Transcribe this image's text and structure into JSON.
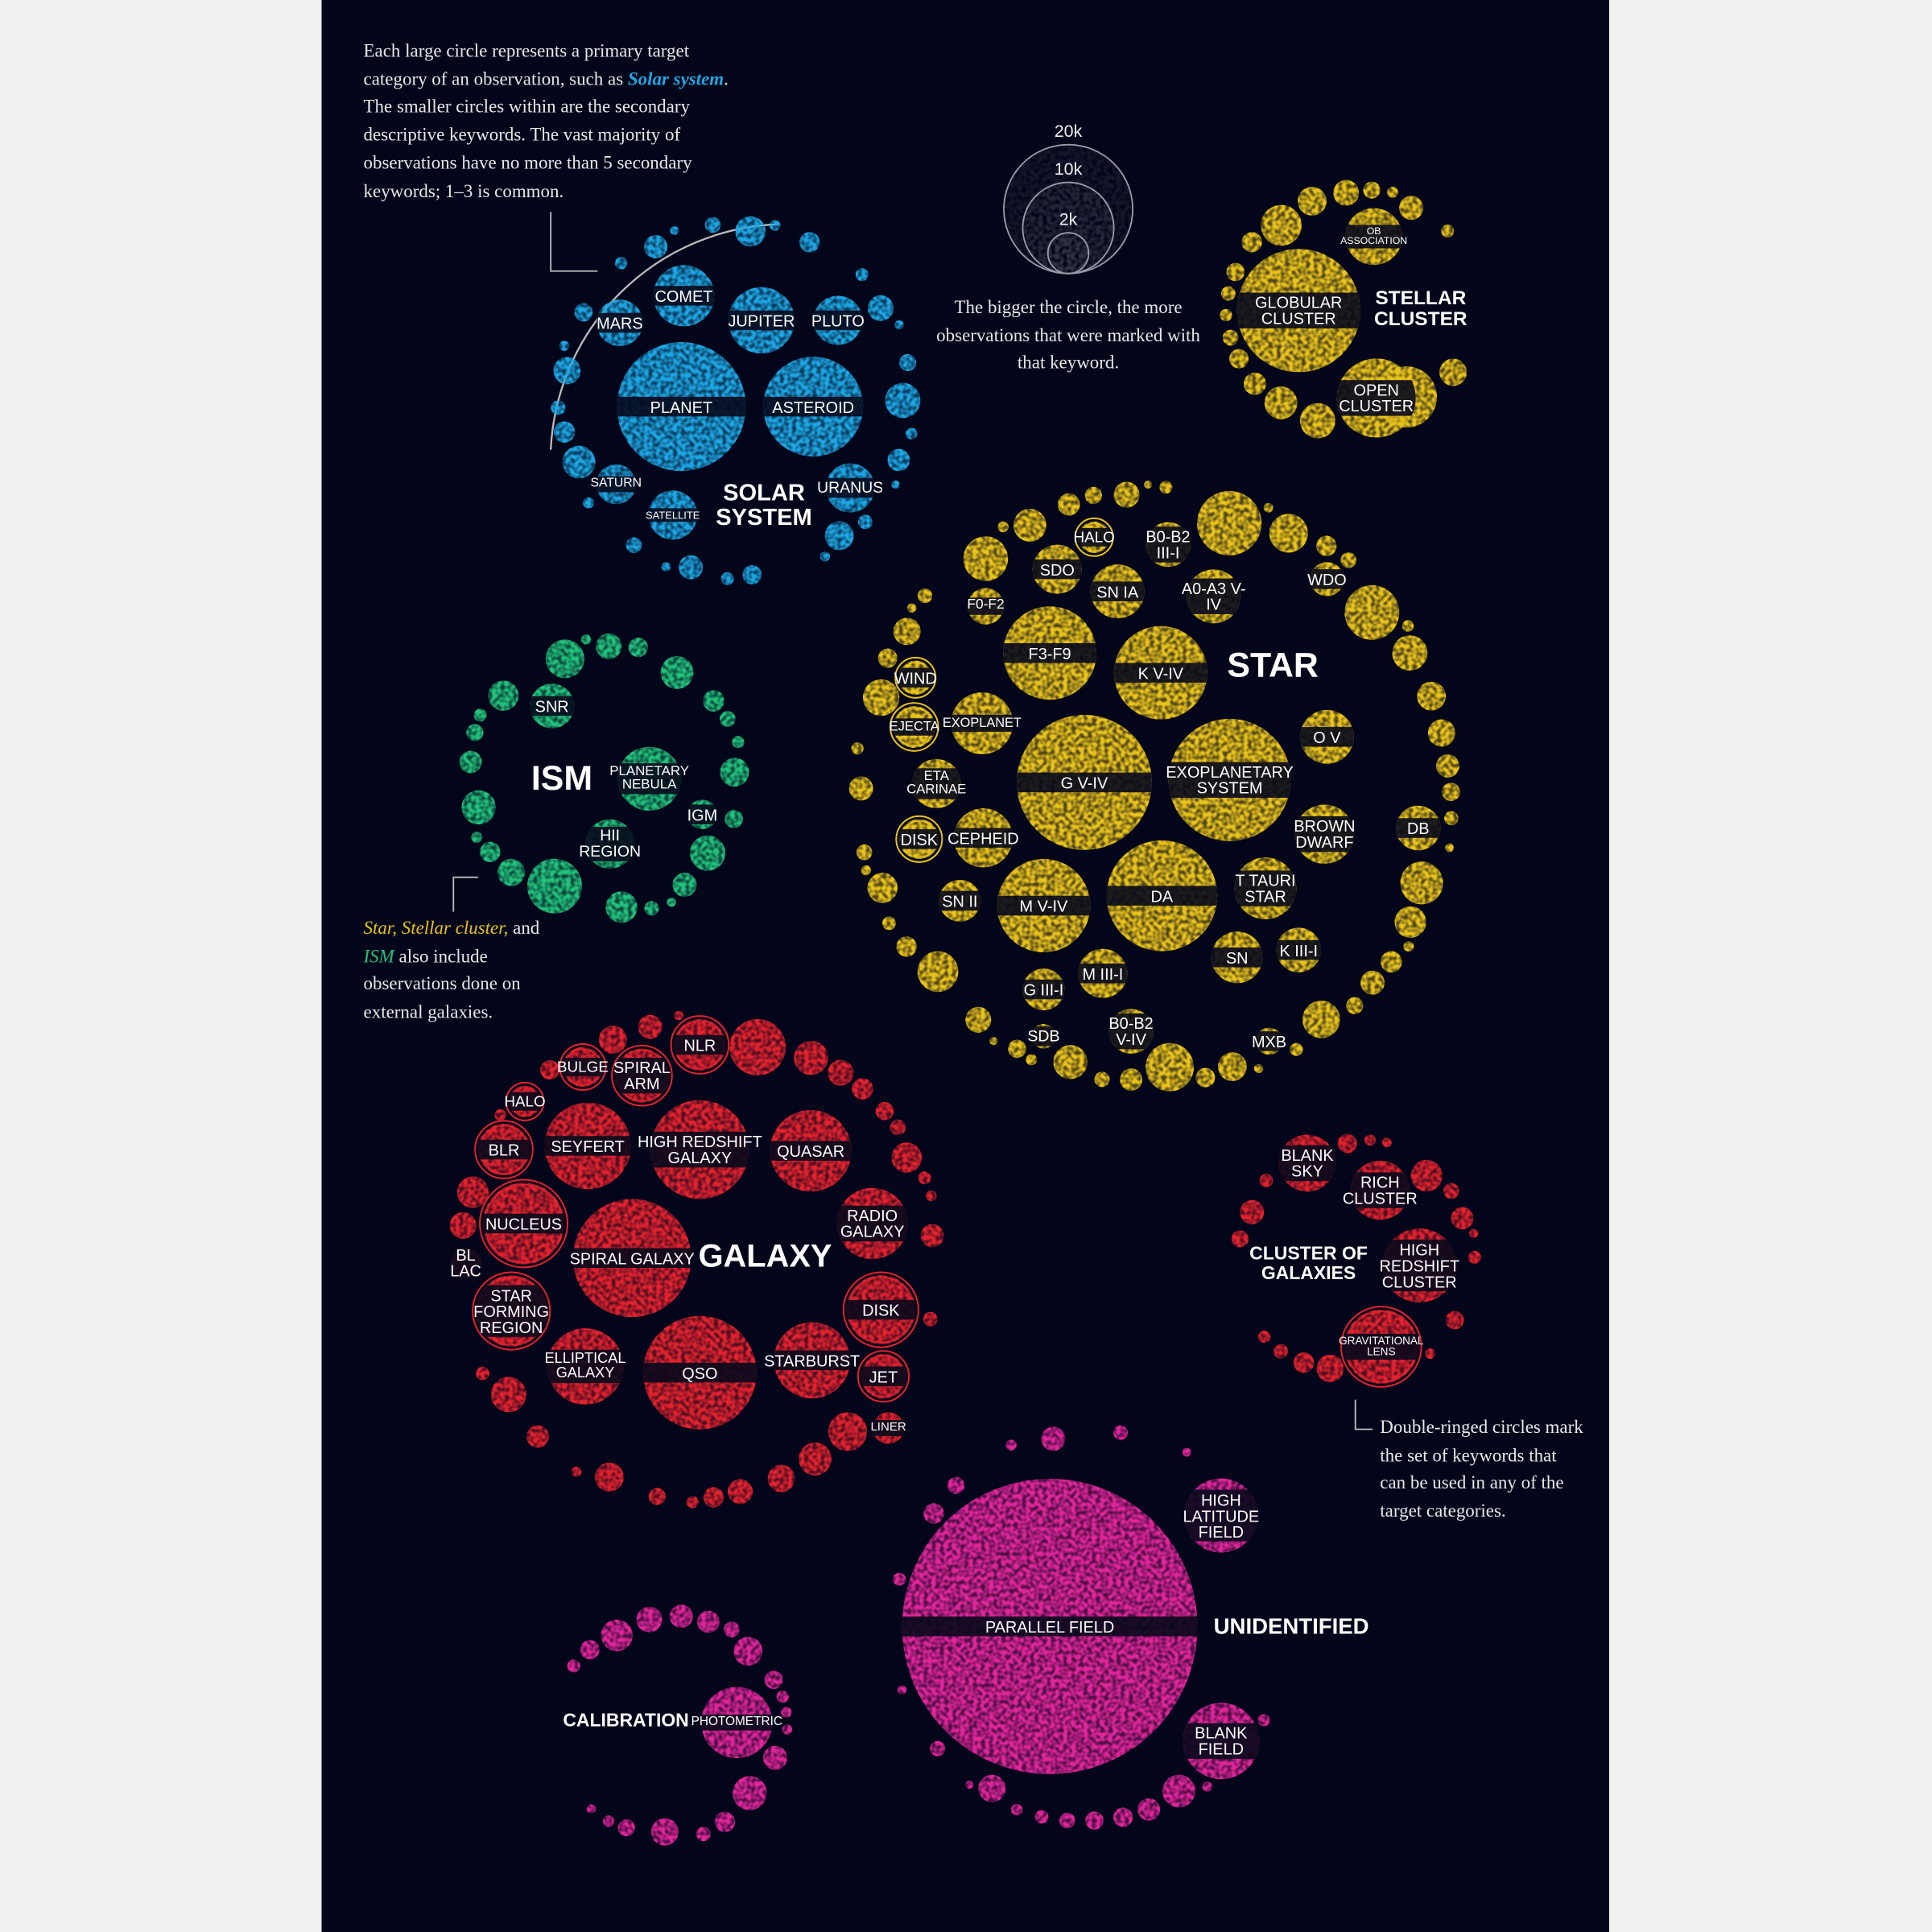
{
  "intro": [
    "Each large circle represents a primary target category of an observation, such as",
    "Solar system",
    ". The smaller circles within are the secondary descriptive keywords. The vast majority of observations have no more than 5 secondary keywords; 1–3 is common."
  ],
  "size_legend": {
    "ticks": [
      {
        "value": 20000,
        "label": "20k"
      },
      {
        "value": 10000,
        "label": "10k"
      },
      {
        "value": 2000,
        "label": "2k"
      }
    ],
    "note": "The bigger the circle, the more observations that were marked with that keyword."
  },
  "note_external": [
    "Star, Stellar cluster,",
    "and",
    "ISM",
    "also include observations done on external galaxies."
  ],
  "note_double": "Double-ringed circles mark the set of keywords that can be used in any of the target categories.",
  "categories": [
    {
      "name": "SOLAR SYSTEM",
      "color": "#1ea7e4",
      "keywords": [
        {
          "label": "PLANET",
          "value": 20000
        },
        {
          "label": "ASTEROID",
          "value": 12000
        },
        {
          "label": "COMET",
          "value": 4500
        },
        {
          "label": "JUPITER",
          "value": 5300
        },
        {
          "label": "PLUTO",
          "value": 2900
        },
        {
          "label": "MARS",
          "value": 2600
        },
        {
          "label": "SATURN",
          "value": 1900
        },
        {
          "label": "SATELLITE",
          "value": 2900
        },
        {
          "label": "URANUS",
          "value": 2900
        }
      ],
      "other_values": [
        1500,
        1300,
        1100,
        1000,
        900,
        800,
        700,
        650,
        600,
        550,
        500,
        450,
        400,
        350,
        300,
        300,
        250,
        250,
        200,
        200,
        180,
        160,
        150,
        140,
        120,
        120,
        100,
        100,
        90,
        80
      ]
    },
    {
      "name": "STELLAR CLUSTER",
      "color": "#e9c31c",
      "keywords": [
        {
          "label": "GLOBULAR CLUSTER",
          "value": 18300
        },
        {
          "label": "OPEN CLUSTER",
          "value": 7500
        },
        {
          "label": "OB ASSOCIATION",
          "value": 3900
        }
      ],
      "other_values": [
        4500,
        2000,
        1500,
        1300,
        1000,
        900,
        800,
        700,
        600,
        500,
        450,
        400,
        350,
        300,
        250,
        200,
        180,
        150
      ]
    },
    {
      "name": "ISM",
      "color": "#22c27c",
      "keywords": [
        {
          "label": "SNR",
          "value": 2400
        },
        {
          "label": "PLANETARY NEBULA",
          "value": 4900
        },
        {
          "label": "HII REGION",
          "value": 2900
        },
        {
          "label": "IGM",
          "value": 1050
        }
      ],
      "other_values": [
        3600,
        1800,
        1500,
        1400,
        1300,
        1200,
        1100,
        1000,
        900,
        800,
        700,
        600,
        550,
        500,
        450,
        400,
        350,
        300,
        250,
        200,
        180,
        150,
        120,
        100
      ]
    },
    {
      "name": "STAR",
      "color": "#e9c31c",
      "keywords": [
        {
          "label": "G V-IV",
          "value": 22000
        },
        {
          "label": "EXOPLANETARY SYSTEM",
          "value": 18000
        },
        {
          "label": "F3-F9",
          "value": 10500
        },
        {
          "label": "K V-IV",
          "value": 10500
        },
        {
          "label": "DA",
          "value": 14800
        },
        {
          "label": "M V-IV",
          "value": 10500
        },
        {
          "label": "SDO",
          "value": 2900
        },
        {
          "label": "SN IA",
          "value": 3500
        },
        {
          "label": "HALO",
          "value": 1200,
          "double": true
        },
        {
          "label": "B0-B2 III-I",
          "value": 2400
        },
        {
          "label": "A0-A3 V-IV",
          "value": 3500
        },
        {
          "label": "WDO",
          "value": 1400
        },
        {
          "label": "F0-F2",
          "value": 1600
        },
        {
          "label": "WIND",
          "value": 1400,
          "double": true
        },
        {
          "label": "EJECTA",
          "value": 2100,
          "double": true
        },
        {
          "label": "EXOPLANET",
          "value": 4600
        },
        {
          "label": "ETA CARINAE",
          "value": 2900
        },
        {
          "label": "DISK",
          "value": 1900,
          "double": true
        },
        {
          "label": "CEPHEID",
          "value": 4200
        },
        {
          "label": "O V",
          "value": 3500
        },
        {
          "label": "BROWN DWARF",
          "value": 4200
        },
        {
          "label": "DB",
          "value": 2400
        },
        {
          "label": "T TAURI STAR",
          "value": 4600
        },
        {
          "label": "SN II",
          "value": 2100
        },
        {
          "label": "M III-I",
          "value": 2900
        },
        {
          "label": "SN",
          "value": 3200
        },
        {
          "label": "K III-I",
          "value": 2400
        },
        {
          "label": "G III-I",
          "value": 2100
        },
        {
          "label": "B0-B2 V-IV",
          "value": 2400
        },
        {
          "label": "SDB",
          "value": 730
        },
        {
          "label": "MXB",
          "value": 880
        }
      ],
      "other_values": [
        5000,
        3600,
        2800,
        2400,
        2200,
        2000,
        1800,
        1700,
        1600,
        1500,
        1400,
        1300,
        1200,
        1100,
        1000,
        1000,
        900,
        900,
        800,
        800,
        700,
        700,
        650,
        600,
        600,
        550,
        500,
        500,
        450,
        450,
        400,
        400,
        350,
        350,
        300,
        300,
        280,
        260,
        240,
        220,
        200,
        200,
        180,
        160,
        150,
        140,
        130,
        120,
        110,
        100,
        100,
        90,
        80,
        80
      ]
    },
    {
      "name": "GALAXY",
      "color": "#e3222f",
      "keywords": [
        {
          "label": "SPIRAL GALAXY",
          "value": 16800
        },
        {
          "label": "QSO",
          "value": 15500
        },
        {
          "label": "HIGH REDSHIFT GALAXY",
          "value": 11700
        },
        {
          "label": "SEYFERT",
          "value": 9000
        },
        {
          "label": "QUASAR",
          "value": 8000
        },
        {
          "label": "NUCLEUS",
          "value": 8000,
          "double": true
        },
        {
          "label": "RADIO GALAXY",
          "value": 6100
        },
        {
          "label": "DISK",
          "value": 5700,
          "double": true
        },
        {
          "label": "ELLIPTICAL GALAXY",
          "value": 7000
        },
        {
          "label": "STARBURST",
          "value": 7000
        },
        {
          "label": "STAR FORMING REGION",
          "value": 6100,
          "double": true
        },
        {
          "label": "BLR",
          "value": 3200,
          "double": true
        },
        {
          "label": "NLR",
          "value": 3200,
          "double": true
        },
        {
          "label": "BULGE",
          "value": 1900,
          "double": true
        },
        {
          "label": "SPIRAL ARM",
          "value": 3500,
          "double": true
        },
        {
          "label": "HALO",
          "value": 1200,
          "double": true
        },
        {
          "label": "BL LAC",
          "value": 1050
        },
        {
          "label": "JET",
          "value": 2400,
          "double": true
        },
        {
          "label": "LINER",
          "value": 1200
        }
      ],
      "other_values": [
        3800,
        1800,
        1500,
        1400,
        1300,
        1200,
        1100,
        1000,
        950,
        900,
        850,
        800,
        750,
        700,
        650,
        600,
        550,
        500,
        450,
        400,
        350,
        300,
        250,
        220,
        200,
        180,
        160,
        140,
        120,
        100
      ]
    },
    {
      "name": "CLUSTER OF GALAXIES",
      "color": "#e3222f",
      "keywords": [
        {
          "label": "BLANK SKY",
          "value": 3900
        },
        {
          "label": "RICH CLUSTER",
          "value": 4200
        },
        {
          "label": "HIGH REDSHIFT CLUSTER",
          "value": 6600
        },
        {
          "label": "GRAVITATIONAL LENS",
          "value": 6600,
          "double": true
        }
      ],
      "other_values": [
        1200,
        900,
        700,
        600,
        500,
        450,
        400,
        350,
        300,
        250,
        220,
        200,
        180,
        150,
        130,
        110,
        100
      ]
    },
    {
      "name": "UNIDENTIFIED",
      "color": "#e0259a",
      "keywords": [
        {
          "label": "PARALLEL FIELD",
          "value": 105000
        },
        {
          "label": "HIGH LATITUDE FIELD",
          "value": 6600
        },
        {
          "label": "BLANK FIELD",
          "value": 7000
        }
      ],
      "other_values": [
        1300,
        900,
        700,
        600,
        500,
        450,
        400,
        350,
        300,
        280,
        250,
        220,
        200,
        180,
        160,
        140,
        120,
        100,
        90,
        80
      ]
    },
    {
      "name": "CALIBRATION",
      "color": "#e0259a",
      "keywords": [
        {
          "label": "PHOTOMETRIC",
          "value": 6100
        }
      ],
      "other_values": [
        1400,
        1200,
        1000,
        900,
        800,
        700,
        650,
        600,
        500,
        450,
        400,
        350,
        300,
        250,
        200,
        180,
        160,
        140,
        120,
        100
      ]
    }
  ]
}
